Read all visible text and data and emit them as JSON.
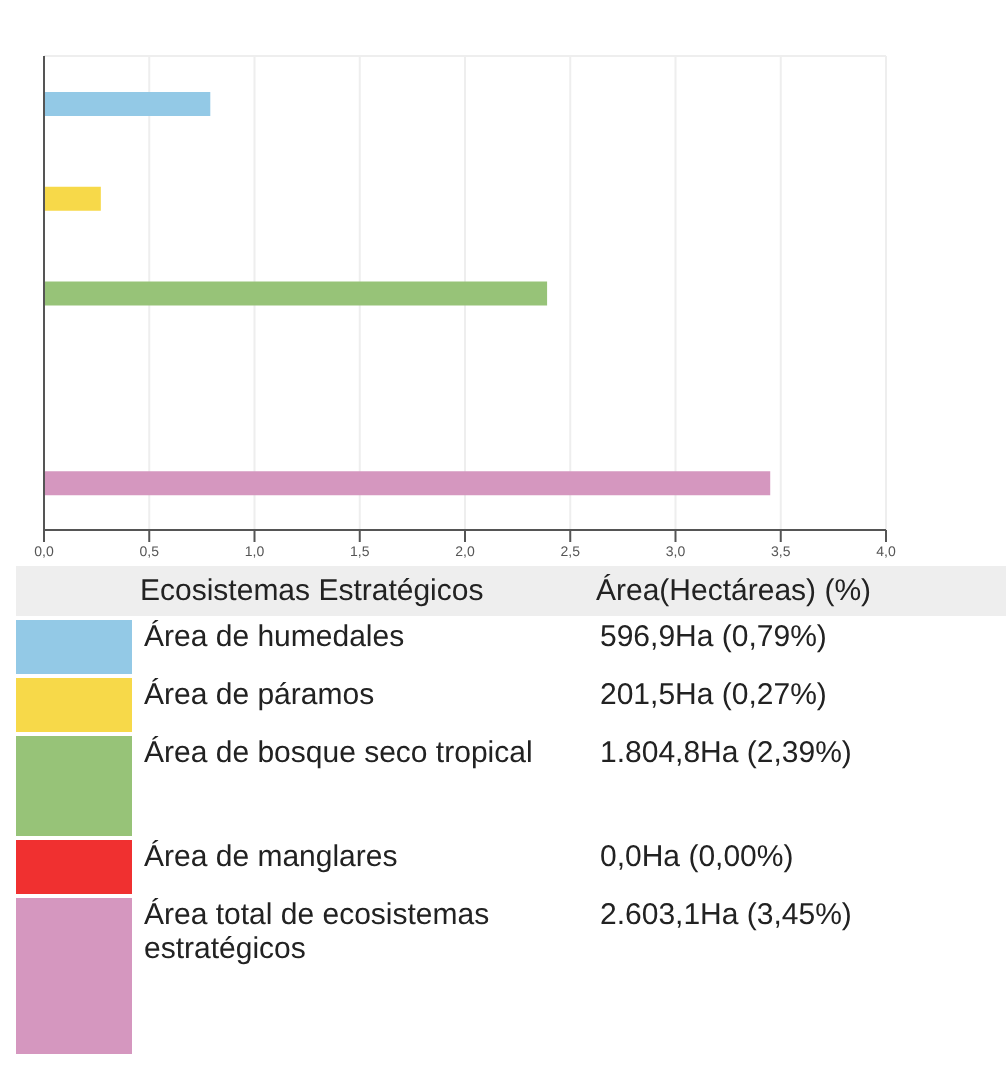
{
  "chart_data": {
    "type": "bar",
    "orientation": "horizontal",
    "stacked": true,
    "categories": [
      null,
      null,
      null,
      null,
      null
    ],
    "series": [
      {
        "name": "Área de humedales",
        "color": "#93c9e6",
        "values": [
          0.79,
          null,
          null,
          null,
          null
        ]
      },
      {
        "name": "Área de páramos",
        "color": "#f7d949",
        "values": [
          null,
          0.27,
          null,
          null,
          null
        ]
      },
      {
        "name": "Área de bosque seco tropical",
        "color": "#97c378",
        "values": [
          null,
          null,
          2.39,
          null,
          null
        ]
      },
      {
        "name": "Área de manglares",
        "color": "#f03030",
        "values": [
          null,
          null,
          null,
          0.0,
          null
        ]
      },
      {
        "name": "Área total de ecosistemas estratégicos",
        "color": "#d597bf",
        "values": [
          null,
          null,
          null,
          null,
          3.45
        ]
      }
    ],
    "xlim": [
      0,
      4
    ],
    "xticks": [
      {
        "value": 0,
        "label": "0,0"
      },
      {
        "value": 0.5,
        "label": "0,5"
      },
      {
        "value": 1,
        "label": "1,0"
      },
      {
        "value": 1.5,
        "label": "1,5"
      },
      {
        "value": 2,
        "label": "2,0"
      },
      {
        "value": 2.5,
        "label": "2,5"
      },
      {
        "value": 3,
        "label": "3,0"
      },
      {
        "value": 3.5,
        "label": "3,5"
      },
      {
        "value": 4,
        "label": "4,0"
      }
    ],
    "legend_title": "Ecosistemas Estratégicos",
    "annotations": [
      "Área(Hectáreas) (%)",
      "596,9Ha  (0,79%)",
      "201,5Ha  (0,27%)",
      "1.804,8Ha  (2,39%)",
      "0,0Ha  (0,00%)",
      "2.603,1Ha  (3,45%)"
    ],
    "legend": "bottom",
    "grid": true,
    "tick_labels": "x"
  }
}
